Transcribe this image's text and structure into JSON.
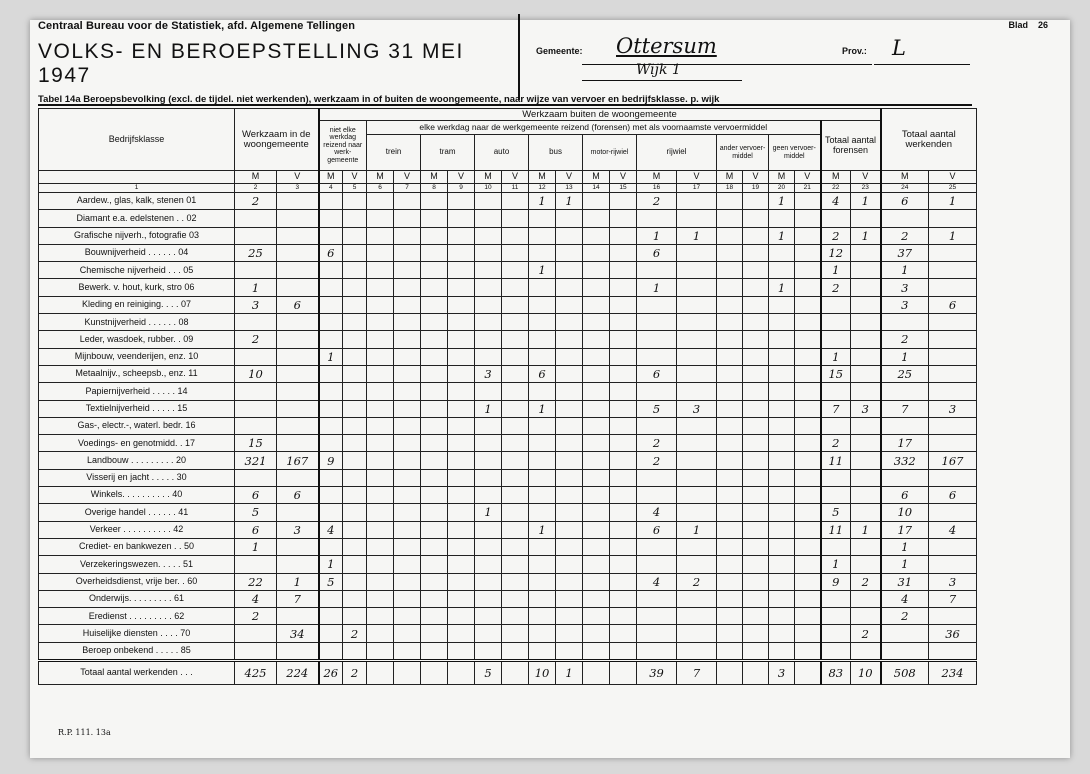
{
  "header": {
    "organization": "Centraal Bureau voor de Statistiek, afd. Algemene Tellingen",
    "title": "VOLKS- EN BEROEPSTELLING 31 MEI 1947",
    "blad_label": "Blad",
    "blad_number": "26",
    "gemeente_label": "Gemeente:",
    "gemeente_value": "Ottersum",
    "wijk_value": "Wijk 1",
    "prov_label": "Prov.:",
    "prov_value": "L"
  },
  "table_title": "Tabel 14a Beroepsbevolking (excl. de tijdel. niet werkenden), werkzaam in of buiten de woongemeente, naar wijze van vervoer en bedrijfsklasse. p. wijk",
  "columns": {
    "bedrijfsklasse": "Bedrijfsklasse",
    "werkzaam_in": "Werkzaam in de woongemeente",
    "niet_elke": "niet elke werkdag reizend naar werk-gemeente",
    "werkzaam_buiten": "Werkzaam buiten de woongemeente",
    "elke_werkdag": "elke werkdag naar de werkgemeente reizend (forensen) met als voornaamste vervoermiddel",
    "trein": "trein",
    "tram": "tram",
    "auto": "auto",
    "bus": "bus",
    "motor": "motor-rijwiel",
    "rijwiel": "rijwiel",
    "ander": "ander vervoer-middel",
    "geen": "geen vervoer-middel",
    "totaal_forensen": "Totaal aantal forensen",
    "totaal_werkenden": "Totaal aantal werkenden",
    "m": "M",
    "v": "V",
    "numbers": [
      "1",
      "2",
      "3",
      "4",
      "5",
      "6",
      "7",
      "8",
      "9",
      "10",
      "11",
      "12",
      "13",
      "14",
      "15",
      "16",
      "17",
      "18",
      "19",
      "20",
      "21",
      "22",
      "23",
      "24",
      "25"
    ]
  },
  "rows": [
    {
      "label": "Aardew., glas, kalk, stenen 01",
      "v": [
        "2",
        "",
        "",
        "",
        "",
        "",
        "",
        "",
        "",
        "",
        "1",
        "1",
        "",
        "",
        "2",
        "",
        "",
        "",
        "1",
        "",
        "4",
        "1",
        "6",
        "1"
      ]
    },
    {
      "label": "Diamant e.a. edelstenen . . 02",
      "v": [
        "",
        "",
        "",
        "",
        "",
        "",
        "",
        "",
        "",
        "",
        "",
        "",
        "",
        "",
        "",
        "",
        "",
        "",
        "",
        "",
        "",
        "",
        "",
        ""
      ]
    },
    {
      "label": "Grafische nijverh., fotografie 03",
      "v": [
        "",
        "",
        "",
        "",
        "",
        "",
        "",
        "",
        "",
        "",
        "",
        "",
        "",
        "",
        "1",
        "1",
        "",
        "",
        "1",
        "",
        "2",
        "1",
        "2",
        "1"
      ]
    },
    {
      "label": "Bouwnijverheid . . . . . . 04",
      "v": [
        "25",
        "",
        "6",
        "",
        "",
        "",
        "",
        "",
        "",
        "",
        "",
        "",
        "",
        "",
        "6",
        "",
        "",
        "",
        "",
        "",
        "12",
        "",
        "37",
        ""
      ]
    },
    {
      "label": "Chemische nijverheid . . . 05",
      "v": [
        "",
        "",
        "",
        "",
        "",
        "",
        "",
        "",
        "",
        "",
        "1",
        "",
        "",
        "",
        "",
        "",
        "",
        "",
        "",
        "",
        "1",
        "",
        "1",
        ""
      ]
    },
    {
      "label": "Bewerk. v. hout, kurk, stro 06",
      "v": [
        "1",
        "",
        "",
        "",
        "",
        "",
        "",
        "",
        "",
        "",
        "",
        "",
        "",
        "",
        "1",
        "",
        "",
        "",
        "1",
        "",
        "2",
        "",
        "3",
        ""
      ]
    },
    {
      "label": "Kleding en reiniging. . . . 07",
      "v": [
        "3",
        "6",
        "",
        "",
        "",
        "",
        "",
        "",
        "",
        "",
        "",
        "",
        "",
        "",
        "",
        "",
        "",
        "",
        "",
        "",
        "",
        "",
        "3",
        "6"
      ]
    },
    {
      "label": "Kunstnijverheid . . . . . . 08",
      "v": [
        "",
        "",
        "",
        "",
        "",
        "",
        "",
        "",
        "",
        "",
        "",
        "",
        "",
        "",
        "",
        "",
        "",
        "",
        "",
        "",
        "",
        "",
        "",
        ""
      ]
    },
    {
      "label": "Leder, wasdoek, rubber. . 09",
      "v": [
        "2",
        "",
        "",
        "",
        "",
        "",
        "",
        "",
        "",
        "",
        "",
        "",
        "",
        "",
        "",
        "",
        "",
        "",
        "",
        "",
        "",
        "",
        "2",
        ""
      ]
    },
    {
      "label": "Mijnbouw, veenderijen, enz. 10",
      "v": [
        "",
        "",
        "1",
        "",
        "",
        "",
        "",
        "",
        "",
        "",
        "",
        "",
        "",
        "",
        "",
        "",
        "",
        "",
        "",
        "",
        "1",
        "",
        "1",
        ""
      ]
    },
    {
      "label": "Metaalnijv., scheepsb., enz. 11",
      "v": [
        "10",
        "",
        "",
        "",
        "",
        "",
        "",
        "",
        "3",
        "",
        "6",
        "",
        "",
        "",
        "6",
        "",
        "",
        "",
        "",
        "",
        "15",
        "",
        "25",
        ""
      ]
    },
    {
      "label": "Papiernijverheid . . . . . 14",
      "v": [
        "",
        "",
        "",
        "",
        "",
        "",
        "",
        "",
        "",
        "",
        "",
        "",
        "",
        "",
        "",
        "",
        "",
        "",
        "",
        "",
        "",
        "",
        "",
        ""
      ]
    },
    {
      "label": "Textielnijverheid . . . . . 15",
      "v": [
        "",
        "",
        "",
        "",
        "",
        "",
        "",
        "",
        "1",
        "",
        "1",
        "",
        "",
        "",
        "5",
        "3",
        "",
        "",
        "",
        "",
        "7",
        "3",
        "7",
        "3"
      ]
    },
    {
      "label": "Gas-, electr.-, waterl. bedr. 16",
      "v": [
        "",
        "",
        "",
        "",
        "",
        "",
        "",
        "",
        "",
        "",
        "",
        "",
        "",
        "",
        "",
        "",
        "",
        "",
        "",
        "",
        "",
        "",
        "",
        ""
      ]
    },
    {
      "label": "Voedings- en genotmidd. . 17",
      "v": [
        "15",
        "",
        "",
        "",
        "",
        "",
        "",
        "",
        "",
        "",
        "",
        "",
        "",
        "",
        "2",
        "",
        "",
        "",
        "",
        "",
        "2",
        "",
        "17",
        ""
      ]
    },
    {
      "label": "Landbouw . . . . . . . . . 20",
      "v": [
        "321",
        "167",
        "9",
        "",
        "",
        "",
        "",
        "",
        "",
        "",
        "",
        "",
        "",
        "",
        "2",
        "",
        "",
        "",
        "",
        "",
        "11",
        "",
        "332",
        "167"
      ]
    },
    {
      "label": "Visserij en jacht . . . . . 30",
      "v": [
        "",
        "",
        "",
        "",
        "",
        "",
        "",
        "",
        "",
        "",
        "",
        "",
        "",
        "",
        "",
        "",
        "",
        "",
        "",
        "",
        "",
        "",
        "",
        ""
      ]
    },
    {
      "label": "Winkels. . . . . . . . . . 40",
      "v": [
        "6",
        "6",
        "",
        "",
        "",
        "",
        "",
        "",
        "",
        "",
        "",
        "",
        "",
        "",
        "",
        "",
        "",
        "",
        "",
        "",
        "",
        "",
        "6",
        "6"
      ]
    },
    {
      "label": "Overige handel . . . . . . 41",
      "v": [
        "5",
        "",
        "",
        "",
        "",
        "",
        "",
        "",
        "1",
        "",
        "",
        "",
        "",
        "",
        "4",
        "",
        "",
        "",
        "",
        "",
        "5",
        "",
        "10",
        ""
      ]
    },
    {
      "label": "Verkeer . . . . . . . . . . 42",
      "v": [
        "6",
        "3",
        "4",
        "",
        "",
        "",
        "",
        "",
        "",
        "",
        "1",
        "",
        "",
        "",
        "6",
        "1",
        "",
        "",
        "",
        "",
        "11",
        "1",
        "17",
        "4"
      ]
    },
    {
      "label": "Crediet- en bankwezen . . 50",
      "v": [
        "1",
        "",
        "",
        "",
        "",
        "",
        "",
        "",
        "",
        "",
        "",
        "",
        "",
        "",
        "",
        "",
        "",
        "",
        "",
        "",
        "",
        "",
        "1",
        ""
      ]
    },
    {
      "label": "Verzekeringswezen. . . . . 51",
      "v": [
        "",
        "",
        "1",
        "",
        "",
        "",
        "",
        "",
        "",
        "",
        "",
        "",
        "",
        "",
        "",
        "",
        "",
        "",
        "",
        "",
        "1",
        "",
        "1",
        ""
      ]
    },
    {
      "label": "Overheidsdienst, vrije ber. . 60",
      "v": [
        "22",
        "1",
        "5",
        "",
        "",
        "",
        "",
        "",
        "",
        "",
        "",
        "",
        "",
        "",
        "4",
        "2",
        "",
        "",
        "",
        "",
        "9",
        "2",
        "31",
        "3"
      ]
    },
    {
      "label": "Onderwijs. . . . . . . . . 61",
      "v": [
        "4",
        "7",
        "",
        "",
        "",
        "",
        "",
        "",
        "",
        "",
        "",
        "",
        "",
        "",
        "",
        "",
        "",
        "",
        "",
        "",
        "",
        "",
        "4",
        "7"
      ]
    },
    {
      "label": "Eredienst . . . . . . . . . 62",
      "v": [
        "2",
        "",
        "",
        "",
        "",
        "",
        "",
        "",
        "",
        "",
        "",
        "",
        "",
        "",
        "",
        "",
        "",
        "",
        "",
        "",
        "",
        "",
        "2",
        ""
      ]
    },
    {
      "label": "Huiselijke diensten . . . . 70",
      "v": [
        "",
        "34",
        "",
        "2",
        "",
        "",
        "",
        "",
        "",
        "",
        "",
        "",
        "",
        "",
        "",
        "",
        "",
        "",
        "",
        "",
        "",
        "2",
        "",
        "36"
      ]
    },
    {
      "label": "Beroep onbekend . . . . . 85",
      "v": [
        "",
        "",
        "",
        "",
        "",
        "",
        "",
        "",
        "",
        "",
        "",
        "",
        "",
        "",
        "",
        "",
        "",
        "",
        "",
        "",
        "",
        "",
        "",
        ""
      ]
    }
  ],
  "total": {
    "label": "Totaal aantal werkenden . . .",
    "v": [
      "425",
      "224",
      "26",
      "2",
      "",
      "",
      "",
      "",
      "5",
      "",
      "10",
      "1",
      "",
      "",
      "39",
      "7",
      "",
      "",
      "3",
      "",
      "83",
      "10",
      "508",
      "234"
    ]
  },
  "footer_code": "R.P. 111. 13a"
}
